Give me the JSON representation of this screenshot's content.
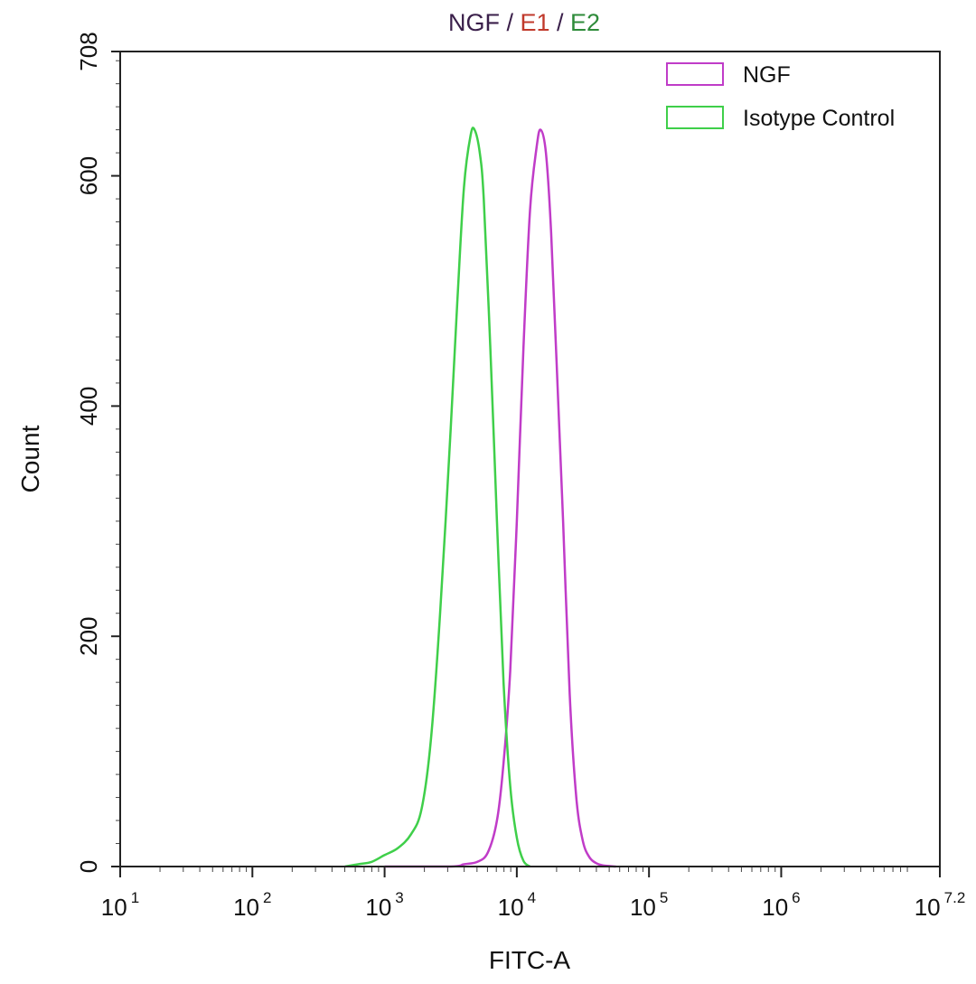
{
  "chart_data": {
    "type": "line",
    "title_parts": [
      {
        "text": "NGF",
        "color": "#3a1f4a"
      },
      {
        "text": " / ",
        "color": "#3a1f4a"
      },
      {
        "text": "E1",
        "color": "#c0392b"
      },
      {
        "text": " / ",
        "color": "#3a1f4a"
      },
      {
        "text": "E2",
        "color": "#2e8b3a"
      }
    ],
    "xlabel": "FITC-A",
    "ylabel": "Count",
    "x_scale": "log",
    "xlim_log10": [
      1,
      7.2
    ],
    "ylim": [
      0,
      708
    ],
    "x_ticks": [
      {
        "base": "10",
        "exp": "1",
        "value": 1
      },
      {
        "base": "10",
        "exp": "2",
        "value": 2
      },
      {
        "base": "10",
        "exp": "3",
        "value": 3
      },
      {
        "base": "10",
        "exp": "4",
        "value": 4
      },
      {
        "base": "10",
        "exp": "5",
        "value": 5
      },
      {
        "base": "10",
        "exp": "6",
        "value": 6
      },
      {
        "base": "10",
        "exp": "7.2",
        "value": 7.2
      }
    ],
    "y_ticks": [
      "0",
      "200",
      "400",
      "600",
      "708"
    ],
    "legend_placement": "top-right",
    "series": [
      {
        "name": "NGF",
        "color": "#c03cc8",
        "log10_x": [
          3.0,
          3.5,
          3.6,
          3.7,
          3.78,
          3.85,
          3.9,
          3.95,
          4.0,
          4.05,
          4.1,
          4.15,
          4.18,
          4.22,
          4.26,
          4.3,
          4.35,
          4.4,
          4.45,
          4.5,
          4.55,
          4.6,
          4.65,
          4.75
        ],
        "counts": [
          0,
          0,
          2,
          4,
          12,
          40,
          90,
          170,
          300,
          450,
          570,
          625,
          640,
          620,
          550,
          440,
          300,
          150,
          60,
          22,
          8,
          3,
          1,
          0
        ]
      },
      {
        "name": "Isotype Control",
        "color": "#3fcf4a",
        "log10_x": [
          2.7,
          2.8,
          2.9,
          3.0,
          3.1,
          3.2,
          3.28,
          3.35,
          3.42,
          3.5,
          3.55,
          3.6,
          3.65,
          3.68,
          3.72,
          3.75,
          3.8,
          3.85,
          3.9,
          3.95,
          4.0,
          4.05,
          4.1
        ],
        "counts": [
          0,
          2,
          4,
          10,
          16,
          28,
          50,
          110,
          220,
          380,
          490,
          590,
          635,
          640,
          620,
          580,
          450,
          300,
          160,
          70,
          25,
          5,
          0
        ]
      }
    ]
  }
}
